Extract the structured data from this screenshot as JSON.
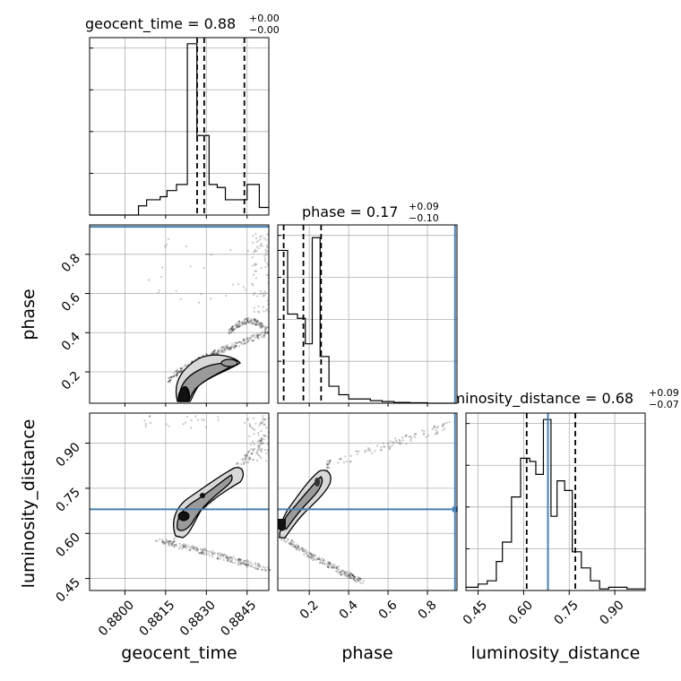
{
  "chart_data": {
    "type": "corner",
    "parameters": [
      "geocent_time",
      "phase",
      "luminosity_distance"
    ],
    "truths": {
      "geocent_time": null,
      "phase": 0.94,
      "luminosity_distance": 0.68
    },
    "truth_color": "#4682b4",
    "titles": [
      {
        "name": "geocent_time",
        "prefix": "geocent_time = ",
        "value": "0.88",
        "plus": "+0.00",
        "minus": "−0.00"
      },
      {
        "name": "phase",
        "prefix": "phase = ",
        "value": "0.17",
        "plus": "+0.09",
        "minus": "−0.10"
      },
      {
        "name": "luminosity_distance",
        "prefix": "luminosity_distance = ",
        "value": "0.68",
        "plus": "+0.09",
        "minus": "−0.07"
      }
    ],
    "axes": {
      "geocent_time": {
        "range": [
          0.8787,
          0.8853
        ],
        "ticks": [
          0.88,
          0.8815,
          0.883,
          0.8845
        ],
        "tick_labels": [
          "0.8800",
          "0.8815",
          "0.8830",
          "0.8845"
        ],
        "label": "geocent_time"
      },
      "phase": {
        "range": [
          0.04,
          0.95
        ],
        "ticks": [
          0.2,
          0.4,
          0.6,
          0.8
        ],
        "tick_labels": [
          "0.2",
          "0.4",
          "0.6",
          "0.8"
        ],
        "label": "phase"
      },
      "luminosity_distance": {
        "range": [
          0.41,
          1.0
        ],
        "ticks": [
          0.45,
          0.6,
          0.75,
          0.9
        ],
        "tick_labels": [
          "0.45",
          "0.60",
          "0.75",
          "0.90"
        ],
        "label": "luminosity_distance"
      }
    },
    "histograms": {
      "geocent_time": {
        "edges": [
          0.8777,
          0.8791,
          0.8805,
          0.8808,
          0.8813,
          0.88155,
          0.8819,
          0.8823,
          0.88265,
          0.8831,
          0.8834,
          0.8837,
          0.8841,
          0.8845,
          0.88495,
          0.8853
        ],
        "counts": [
          0,
          0,
          0.3,
          0.5,
          0.6,
          0.8,
          1.0,
          5.6,
          2.6,
          1.0,
          0.9,
          0.5,
          0.5,
          1.0,
          0.25
        ],
        "ymax": 5.8,
        "quantiles": [
          0.88266,
          0.88292,
          0.8844
        ]
      },
      "phase": {
        "edges": [
          0.04,
          0.09,
          0.14,
          0.18,
          0.215,
          0.255,
          0.3,
          0.35,
          0.4,
          0.455,
          0.51,
          0.57,
          0.63,
          0.71,
          0.8,
          0.95
        ],
        "counts": [
          1.8,
          1.05,
          1.0,
          0.7,
          1.95,
          0.55,
          0.2,
          0.1,
          0.05,
          0.05,
          0.03,
          0.02,
          0.01,
          0.005,
          0
        ],
        "ymax": 2.1,
        "quantiles": [
          0.07,
          0.17,
          0.26
        ]
      },
      "luminosity_distance": {
        "edges": [
          0.41,
          0.45,
          0.48,
          0.51,
          0.53,
          0.56,
          0.59,
          0.62,
          0.64,
          0.665,
          0.69,
          0.71,
          0.735,
          0.76,
          0.79,
          0.82,
          0.85,
          0.88,
          0.94,
          1.0
        ],
        "counts": [
          0.1,
          0.2,
          0.3,
          0.9,
          1.5,
          2.9,
          4.1,
          4.0,
          3.6,
          5.3,
          2.3,
          3.4,
          3.1,
          1.2,
          0.7,
          0.3,
          0.05,
          0.1,
          0.05
        ],
        "ymax": 5.5,
        "quantiles": [
          0.61,
          0.68,
          0.77
        ]
      }
    },
    "tick_labels_y_hist": []
  }
}
